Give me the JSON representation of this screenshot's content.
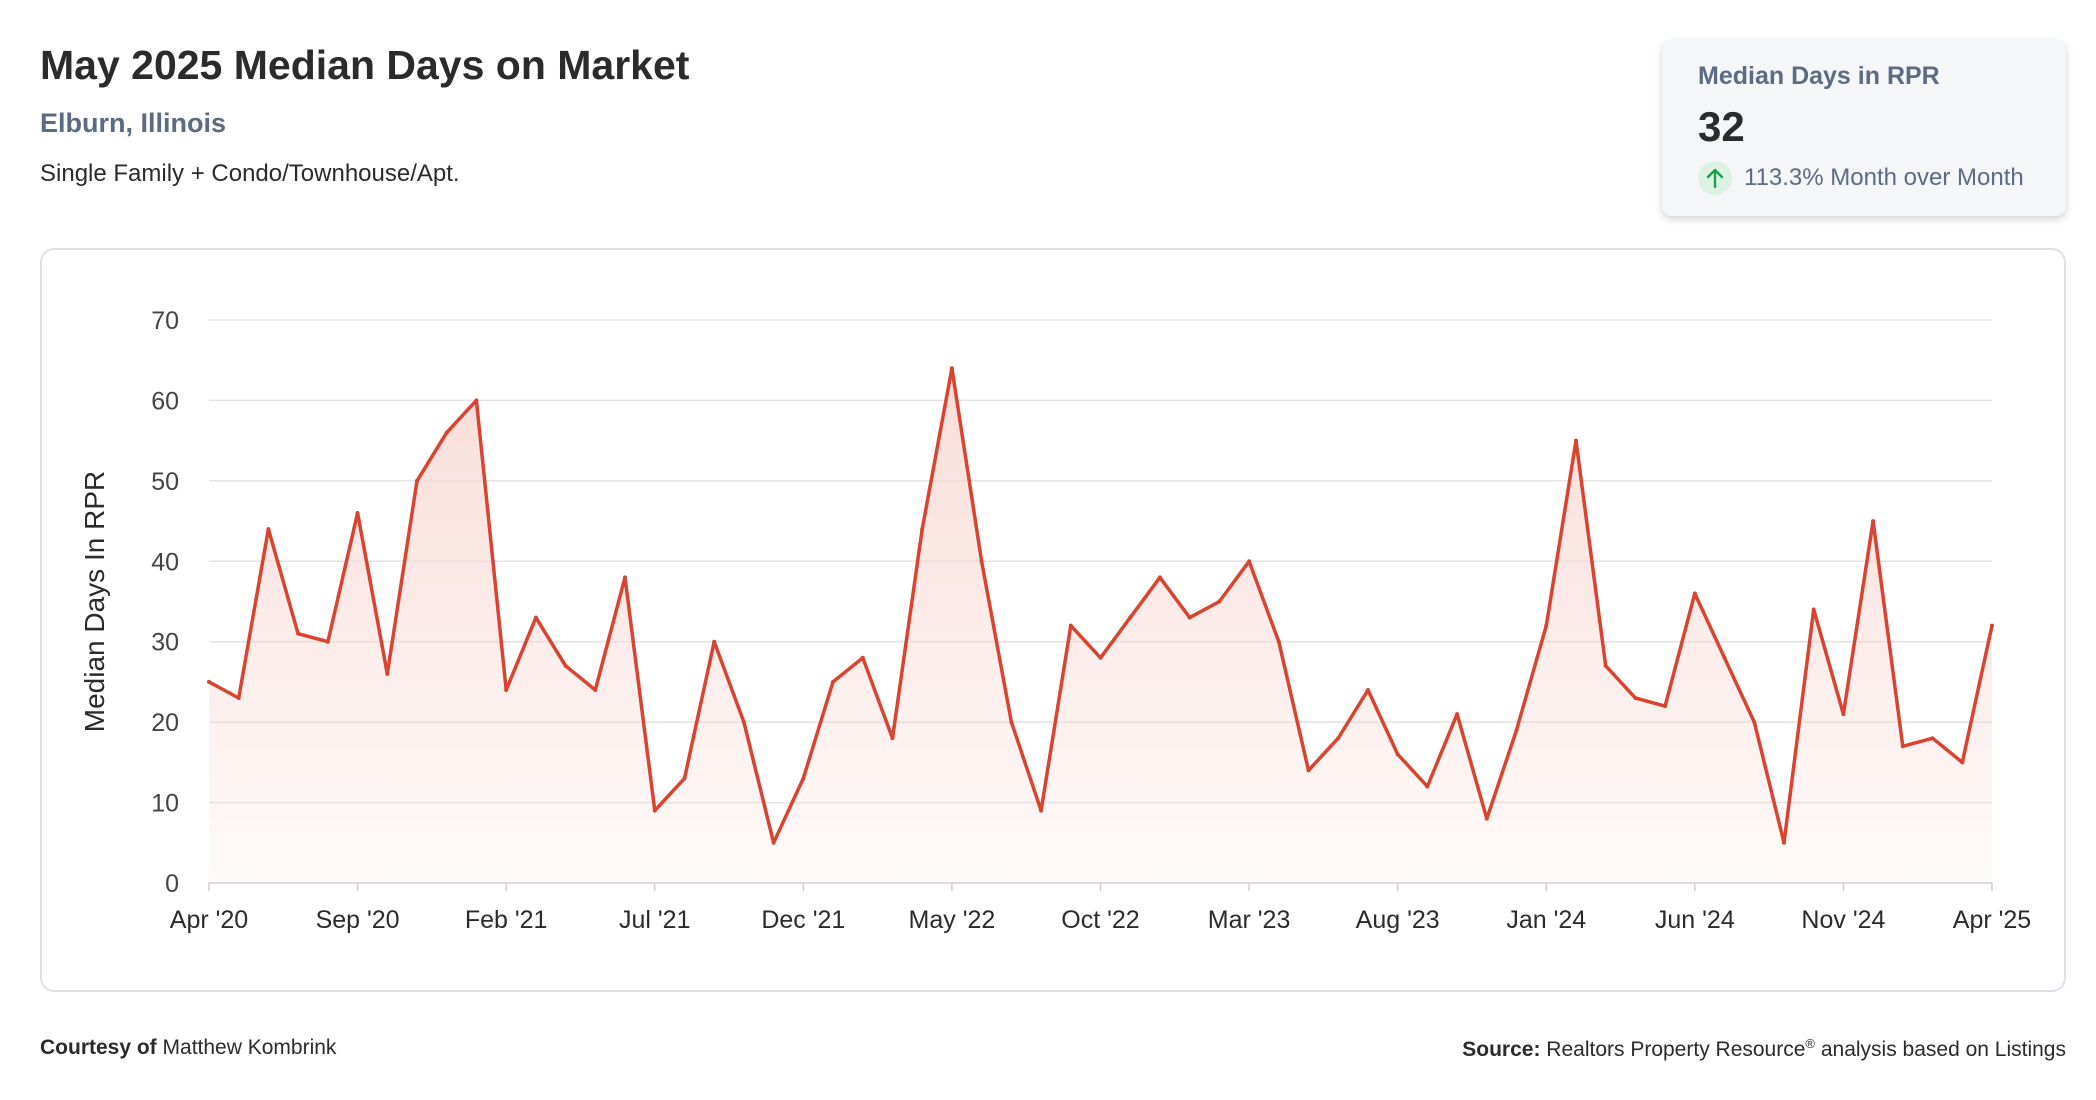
{
  "header": {
    "title": "May 2025 Median Days on Market",
    "location": "Elburn, Illinois",
    "subtitle": "Single Family + Condo/Townhouse/Apt."
  },
  "stat_card": {
    "label": "Median Days in RPR",
    "value": "32",
    "change": "113.3% Month over Month",
    "change_icon": "arrow-up-icon",
    "change_color": "#1e9e4a"
  },
  "footer": {
    "courtesy_label": "Courtesy of",
    "courtesy_name": "Matthew Kombrink",
    "source_label": "Source:",
    "source_text_1": "Realtors Property Resource",
    "source_mark": "®",
    "source_text_2": " analysis based on Listings"
  },
  "colors": {
    "line": "#d9432f",
    "fill": "#f8d7d2",
    "grid": "#e3e3e3",
    "text": "#444444"
  },
  "chart_data": {
    "type": "area",
    "title": "",
    "xlabel": "",
    "ylabel": "Median Days In RPR",
    "ylim": [
      0,
      70
    ],
    "yticks": [
      0,
      10,
      20,
      30,
      40,
      50,
      60,
      70
    ],
    "grid": true,
    "x": [
      "Apr '20",
      "May '20",
      "Jun '20",
      "Jul '20",
      "Aug '20",
      "Sep '20",
      "Oct '20",
      "Nov '20",
      "Dec '20",
      "Jan '21",
      "Feb '21",
      "Mar '21",
      "Apr '21",
      "May '21",
      "Jun '21",
      "Jul '21",
      "Aug '21",
      "Sep '21",
      "Oct '21",
      "Nov '21",
      "Dec '21",
      "Jan '22",
      "Feb '22",
      "Mar '22",
      "Apr '22",
      "May '22",
      "Jun '22",
      "Jul '22",
      "Aug '22",
      "Sep '22",
      "Oct '22",
      "Nov '22",
      "Dec '22",
      "Jan '23",
      "Feb '23",
      "Mar '23",
      "Apr '23",
      "May '23",
      "Jun '23",
      "Jul '23",
      "Aug '23",
      "Sep '23",
      "Oct '23",
      "Nov '23",
      "Dec '23",
      "Jan '24",
      "Feb '24",
      "Mar '24",
      "Apr '24",
      "May '24",
      "Jun '24",
      "Jul '24",
      "Aug '24",
      "Sep '24",
      "Oct '24",
      "Nov '24",
      "Dec '24",
      "Jan '25",
      "Feb '25",
      "Mar '25",
      "Apr '25"
    ],
    "xtick_labels": [
      "Apr '20",
      "Sep '20",
      "Feb '21",
      "Jul '21",
      "Dec '21",
      "May '22",
      "Oct '22",
      "Mar '23",
      "Aug '23",
      "Jan '24",
      "Jun '24",
      "Nov '24",
      "Apr '25"
    ],
    "series": [
      {
        "values": [
          25,
          23,
          44,
          31,
          30,
          46,
          26,
          50,
          56,
          60,
          24,
          33,
          27,
          24,
          38,
          9,
          13,
          30,
          20,
          5,
          13,
          25,
          28,
          18,
          44,
          64,
          40,
          20,
          9,
          32,
          28,
          33,
          38,
          33,
          35,
          40,
          30,
          14,
          18,
          24,
          16,
          12,
          21,
          8,
          19,
          32,
          55,
          27,
          23,
          22,
          36,
          28,
          20,
          5,
          34,
          21,
          45,
          17,
          18,
          15,
          32
        ]
      }
    ]
  }
}
